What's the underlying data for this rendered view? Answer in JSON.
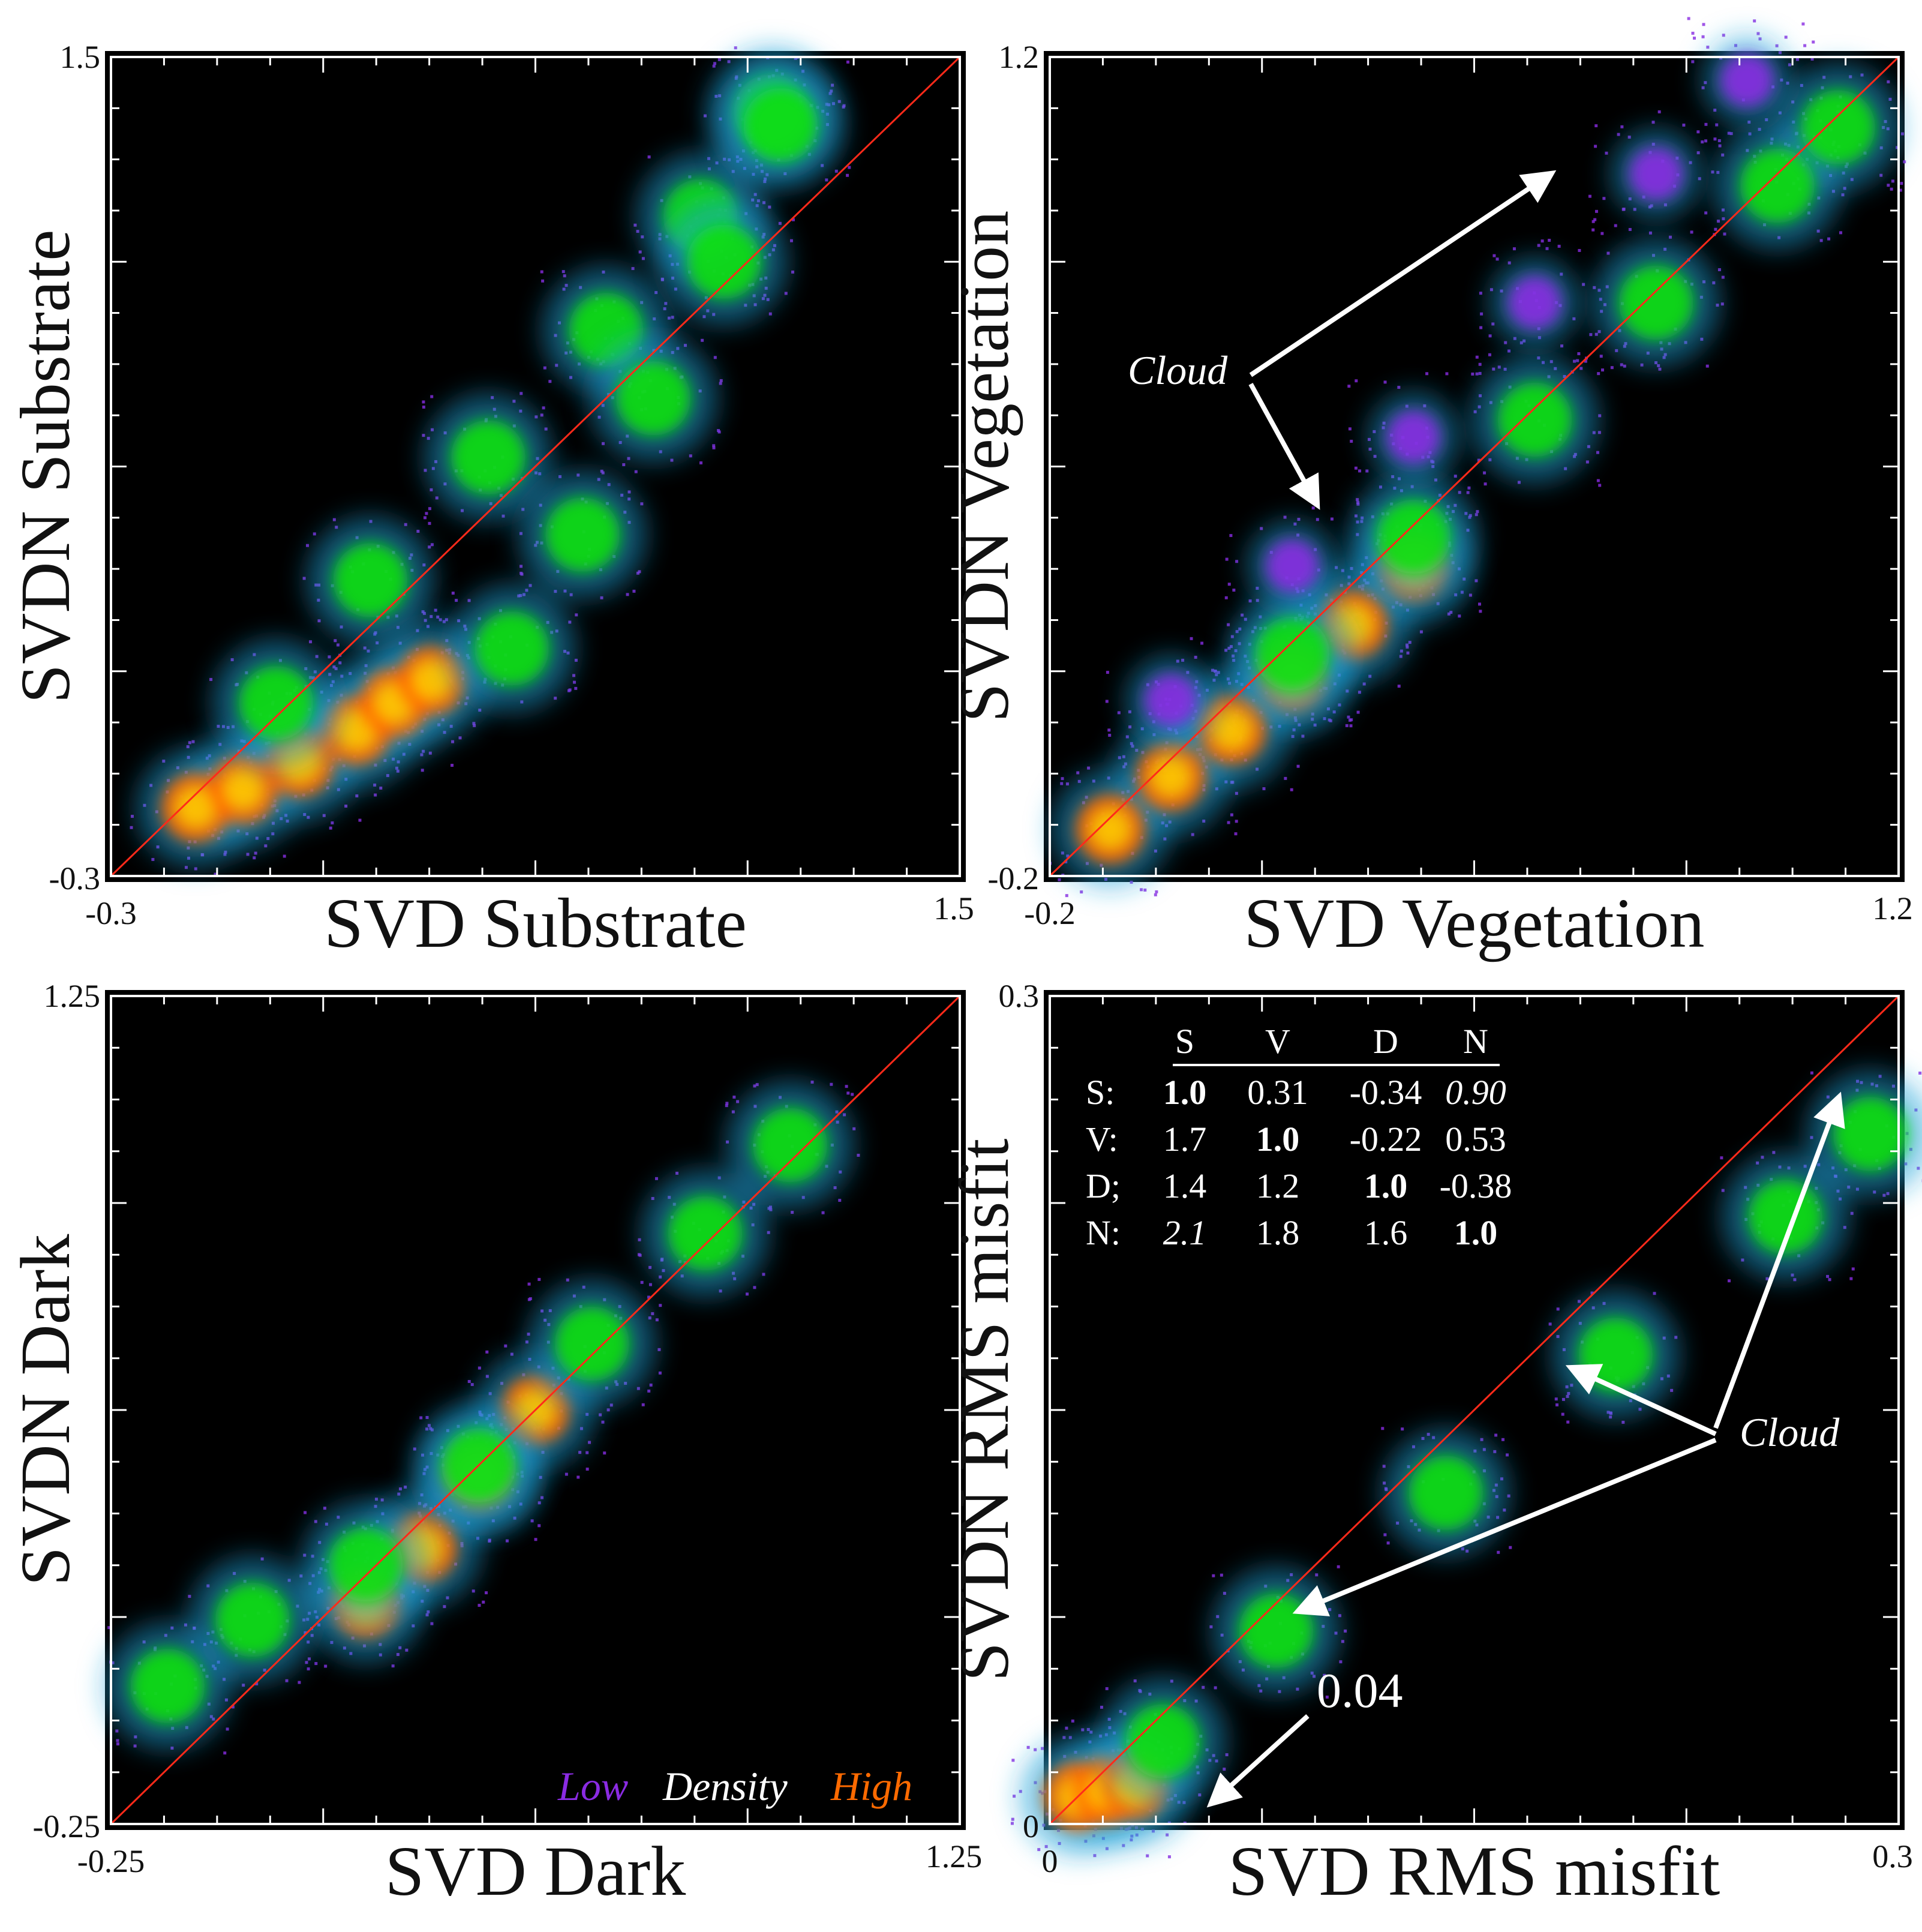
{
  "colors": {
    "background": "#000000",
    "diagonal": "#ff2a1a",
    "density_low": "#8a2be2",
    "density_mid": "#12e012",
    "density_high": "#ff6a00",
    "annotation": "#ffffff"
  },
  "chart_data": [
    {
      "type": "scatter",
      "density_colored": true,
      "xlabel": "SVD Substrate",
      "ylabel": "SVDN Substrate",
      "xlim": [
        -0.3,
        1.5
      ],
      "ylim": [
        -0.3,
        1.5
      ],
      "x_tick_labels": [
        "-0.3",
        "1.5"
      ],
      "y_tick_labels": [
        "1.5",
        "-0.3"
      ],
      "reference_line": "1:1",
      "density_clusters": [
        {
          "x": [
            -0.12,
            -0.02,
            0.1,
            0.22,
            0.3,
            0.38
          ],
          "y": [
            -0.15,
            -0.11,
            -0.05,
            0.02,
            0.08,
            0.13
          ],
          "level": "high"
        },
        {
          "x": [
            0.05,
            0.25,
            0.5,
            0.75,
            0.95,
            1.1
          ],
          "y": [
            0.08,
            0.35,
            0.62,
            0.9,
            1.15,
            1.38
          ],
          "level": "mid"
        },
        {
          "x": [
            0.55,
            0.7,
            0.85,
            1.0,
            1.12
          ],
          "y": [
            0.2,
            0.45,
            0.75,
            1.05,
            1.35
          ],
          "level": "mid"
        }
      ]
    },
    {
      "type": "scatter",
      "density_colored": true,
      "xlabel": "SVD Vegetation",
      "ylabel": "SVDN Vegetation",
      "xlim": [
        -0.2,
        1.2
      ],
      "ylim": [
        -0.2,
        1.2
      ],
      "x_tick_labels": [
        "-0.2",
        "1.2"
      ],
      "y_tick_labels": [
        "1.2",
        "-0.2"
      ],
      "reference_line": "1:1",
      "density_clusters": [
        {
          "x": [
            -0.1,
            0.0,
            0.1,
            0.2,
            0.3,
            0.4
          ],
          "y": [
            -0.12,
            -0.03,
            0.05,
            0.14,
            0.23,
            0.33
          ],
          "level": "high"
        },
        {
          "x": [
            0.2,
            0.4,
            0.6,
            0.8,
            1.0,
            1.1
          ],
          "y": [
            0.18,
            0.38,
            0.58,
            0.78,
            0.98,
            1.08
          ],
          "level": "mid"
        },
        {
          "x": [
            0.0,
            0.2,
            0.4,
            0.6,
            0.8,
            0.95
          ],
          "y": [
            0.1,
            0.33,
            0.55,
            0.78,
            1.0,
            1.16
          ],
          "level": "low"
        }
      ],
      "annotations": [
        {
          "text": "Cloud",
          "arrows": 2
        }
      ]
    },
    {
      "type": "scatter",
      "density_colored": true,
      "xlabel": "SVD Dark",
      "ylabel": "SVDN Dark",
      "xlim": [
        -0.25,
        1.25
      ],
      "ylim": [
        -0.25,
        1.25
      ],
      "x_tick_labels": [
        "-0.25",
        "1.25"
      ],
      "y_tick_labels": [
        "1.25",
        "-0.25"
      ],
      "reference_line": "1:1",
      "density_clusters": [
        {
          "x": [
            0.2,
            0.3,
            0.4,
            0.5
          ],
          "y": [
            0.15,
            0.25,
            0.38,
            0.5
          ],
          "level": "high"
        },
        {
          "x": [
            -0.15,
            0.0,
            0.2,
            0.4,
            0.6,
            0.8,
            0.95
          ],
          "y": [
            0.0,
            0.12,
            0.22,
            0.4,
            0.62,
            0.82,
            0.98
          ],
          "level": "mid"
        }
      ],
      "legend_text": [
        "Low",
        "Density",
        "High"
      ]
    },
    {
      "type": "scatter",
      "density_colored": true,
      "xlabel": "SVD RMS misfit",
      "ylabel": "SVDN RMS misfit",
      "xlim": [
        0,
        0.3
      ],
      "ylim": [
        0,
        0.3
      ],
      "x_tick_labels": [
        "0",
        "0.3"
      ],
      "y_tick_labels": [
        "0.3",
        "0"
      ],
      "reference_line": "1:1",
      "density_clusters": [
        {
          "x": [
            0.01,
            0.02,
            0.03
          ],
          "y": [
            0.01,
            0.012,
            0.014
          ],
          "level": "high"
        },
        {
          "x": [
            0.04,
            0.08,
            0.14,
            0.2,
            0.26,
            0.29
          ],
          "y": [
            0.03,
            0.07,
            0.12,
            0.17,
            0.22,
            0.25
          ],
          "level": "mid"
        }
      ],
      "annotations": [
        {
          "text": "Cloud",
          "arrows": 2
        },
        {
          "text": "0.04",
          "arrows": 1
        }
      ],
      "table": {
        "headers": [
          "",
          "S",
          "V",
          "D",
          "N"
        ],
        "rows": [
          {
            "label": "S:",
            "cells": [
              {
                "v": "1.0",
                "style": "bold"
              },
              {
                "v": "0.31",
                "style": "normal"
              },
              {
                "v": "-0.34",
                "style": "normal"
              },
              {
                "v": "0.90",
                "style": "italic"
              }
            ]
          },
          {
            "label": "V:",
            "cells": [
              {
                "v": "1.7",
                "style": "normal"
              },
              {
                "v": "1.0",
                "style": "bold"
              },
              {
                "v": "-0.22",
                "style": "normal"
              },
              {
                "v": "0.53",
                "style": "normal"
              }
            ]
          },
          {
            "label": "D;",
            "cells": [
              {
                "v": "1.4",
                "style": "normal"
              },
              {
                "v": "1.2",
                "style": "normal"
              },
              {
                "v": "1.0",
                "style": "bold"
              },
              {
                "v": "-0.38",
                "style": "normal"
              }
            ]
          },
          {
            "label": "N:",
            "cells": [
              {
                "v": "2.1",
                "style": "italic"
              },
              {
                "v": "1.8",
                "style": "normal"
              },
              {
                "v": "1.6",
                "style": "normal"
              },
              {
                "v": "1.0",
                "style": "bold"
              }
            ]
          }
        ]
      }
    }
  ]
}
